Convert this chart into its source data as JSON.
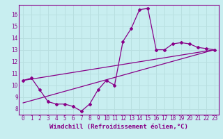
{
  "xlabel": "Windchill (Refroidissement éolien,°C)",
  "bg_color": "#c8eef0",
  "grid_color": "#b8dfe0",
  "line_color": "#880088",
  "xlim": [
    -0.5,
    23.5
  ],
  "ylim": [
    7.5,
    16.8
  ],
  "xticks": [
    0,
    1,
    2,
    3,
    4,
    5,
    6,
    7,
    8,
    9,
    10,
    11,
    12,
    13,
    14,
    15,
    16,
    17,
    18,
    19,
    20,
    21,
    22,
    23
  ],
  "yticks": [
    8,
    9,
    10,
    11,
    12,
    13,
    14,
    15,
    16
  ],
  "line1_x": [
    0,
    1,
    2,
    3,
    4,
    5,
    6,
    7,
    8,
    9,
    10,
    11,
    12,
    13,
    14,
    15,
    16,
    17,
    18,
    19,
    20,
    21,
    22,
    23
  ],
  "line1_y": [
    10.4,
    10.6,
    9.6,
    8.6,
    8.4,
    8.4,
    8.2,
    7.8,
    8.4,
    9.6,
    10.4,
    10.0,
    13.7,
    14.8,
    16.4,
    16.5,
    13.0,
    13.0,
    13.5,
    13.6,
    13.5,
    13.2,
    13.1,
    13.0
  ],
  "line2_x": [
    0,
    23
  ],
  "line2_y": [
    10.4,
    13.0
  ],
  "line3_x": [
    0,
    23
  ],
  "line3_y": [
    8.5,
    13.0
  ],
  "tick_fontsize": 5.5,
  "xlabel_fontsize": 6.5
}
